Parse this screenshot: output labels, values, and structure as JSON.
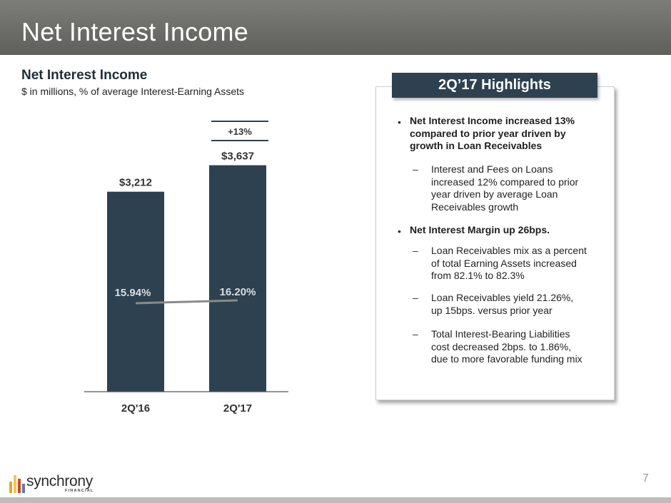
{
  "header": {
    "title": "Net Interest Income"
  },
  "chart_data": {
    "type": "bar",
    "title": "Net Interest Income",
    "subtitle": "$ in millions, % of average Interest-Earning Assets",
    "categories": [
      "2Q'16",
      "2Q'17"
    ],
    "series": [
      {
        "values": [
          3212,
          3637
        ],
        "labels": [
          "$3,212",
          "$3,637"
        ],
        "color": "#2d4150"
      }
    ],
    "line_series": [
      {
        "values": [
          15.94,
          16.2
        ],
        "labels": [
          "15.94%",
          "16.20%"
        ],
        "color": "#8a8a8a"
      }
    ],
    "growth_callout": "+13%",
    "ylim": [
      0,
      4400
    ]
  },
  "highlights": {
    "header": "2Q’17 Highlights",
    "bullet_marker": "•",
    "dash_marker": "–",
    "b1": [
      "Net Interest Income increased 13%",
      "compared to prior year driven by",
      "growth in Loan Receivables"
    ],
    "s1": [
      "Interest and Fees on Loans",
      "increased 12% compared to prior",
      "year driven by average Loan",
      "Receivables growth"
    ],
    "b2": [
      "Net Interest Margin up 26bps."
    ],
    "s2": [
      "Loan Receivables mix as a percent",
      "of total Earning Assets increased",
      "from 82.1% to 82.3%"
    ],
    "s3": [
      "Loan Receivables yield 21.26%,",
      "up 15bps. versus prior year"
    ],
    "s4": [
      "Total Interest-Bearing Liabilities",
      "cost decreased 2bps. to 1.86%,",
      "due to more favorable funding mix"
    ]
  },
  "footer": {
    "page_number": "7",
    "logo_text": "synchrony",
    "logo_sub": "FINANCIAL",
    "logo_colors": [
      "#e8a52a",
      "#f2c84b",
      "#d1462f",
      "#5a7fa8"
    ]
  }
}
